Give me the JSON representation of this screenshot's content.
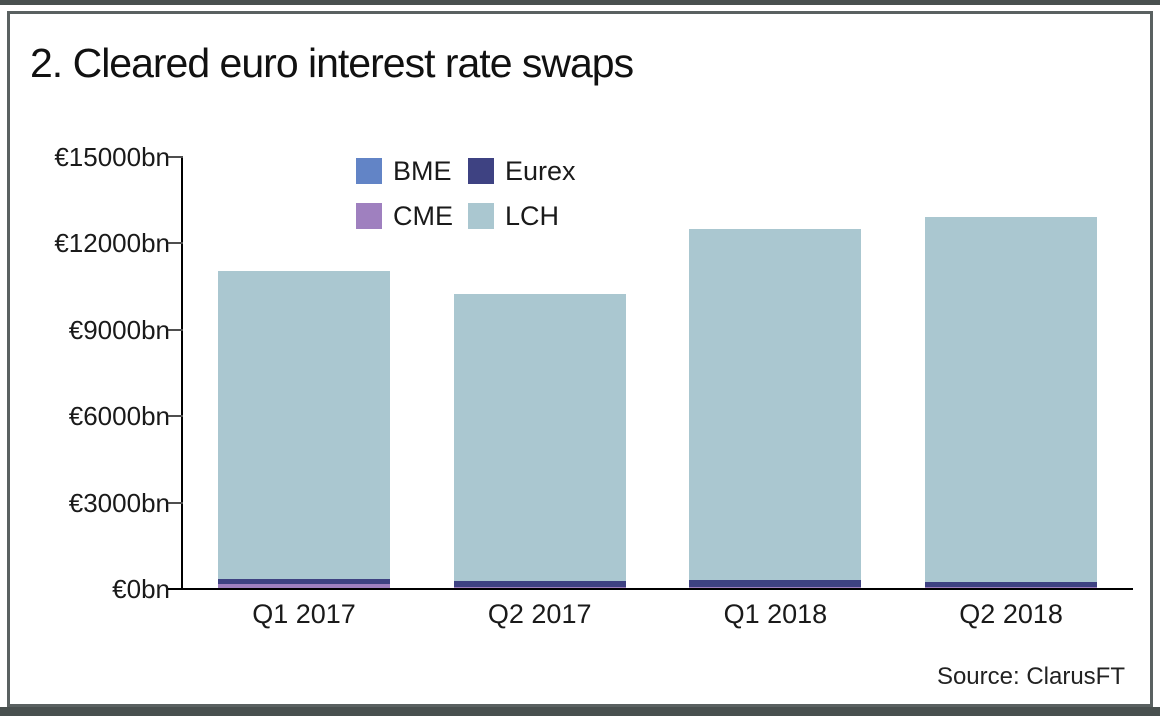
{
  "chart": {
    "title": "2. Cleared euro interest rate swaps",
    "source": "Source: ClarusFT"
  },
  "chart_data": {
    "type": "bar",
    "stacked": true,
    "title": "2. Cleared euro interest rate swaps",
    "source": "Source: ClarusFT",
    "categories": [
      "Q1 2017",
      "Q2 2017",
      "Q1 2018",
      "Q2 2018"
    ],
    "series": [
      {
        "name": "BME",
        "color": "#6284c6",
        "values": [
          10,
          10,
          10,
          10
        ]
      },
      {
        "name": "CME",
        "color": "#9f80bf",
        "values": [
          170,
          50,
          70,
          50
        ]
      },
      {
        "name": "Eurex",
        "color": "#3e4282",
        "values": [
          180,
          210,
          240,
          180
        ]
      },
      {
        "name": "LCH",
        "color": "#aac7d0",
        "values": [
          10690,
          9980,
          12180,
          12660
        ]
      }
    ],
    "totals": [
      11050,
      10250,
      12500,
      12900
    ],
    "unit": "€bn",
    "ylim": [
      0,
      15000
    ],
    "yticks": [
      {
        "value": 0,
        "label": "€0bn"
      },
      {
        "value": 3000,
        "label": "€3000bn"
      },
      {
        "value": 6000,
        "label": "€6000bn"
      },
      {
        "value": 9000,
        "label": "€9000bn"
      },
      {
        "value": 12000,
        "label": "€12000bn"
      },
      {
        "value": 15000,
        "label": "€15000bn"
      }
    ],
    "legend": [
      "BME",
      "Eurex",
      "CME",
      "LCH"
    ],
    "legend_position": "upper-left-inside",
    "grid": false
  }
}
